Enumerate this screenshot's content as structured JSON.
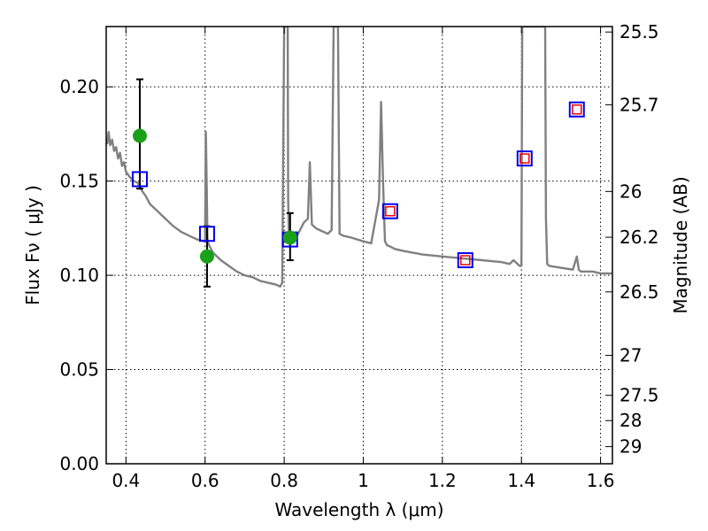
{
  "chart_data": {
    "type": "line",
    "xlabel": "Wavelength  λ (μm)",
    "ylabel": "Flux  Fν  ( μJy )",
    "y2label": "Magnitude (AB)",
    "xlim": [
      0.35,
      1.63
    ],
    "ylim": [
      0.0,
      0.232
    ],
    "grid": true,
    "x_ticks": [
      0.4,
      0.6,
      0.8,
      1.0,
      1.2,
      1.4,
      1.6
    ],
    "x_tick_labels": [
      "0.4",
      "0.6",
      "0.8",
      "1",
      "1.2",
      "1.4",
      "1.6"
    ],
    "y_ticks": [
      0.0,
      0.05,
      0.1,
      0.15,
      0.2
    ],
    "y_tick_labels": [
      "0.00",
      "0.05",
      "0.10",
      "0.15",
      "0.20"
    ],
    "y2_ticks": [
      {
        "label": "25.5",
        "flux": 0.2291
      },
      {
        "label": "25.7",
        "flux": 0.1905
      },
      {
        "label": "26",
        "flux": 0.1445
      },
      {
        "label": "26.2",
        "flux": 0.1202
      },
      {
        "label": "26.5",
        "flux": 0.0912
      },
      {
        "label": "27",
        "flux": 0.0575
      },
      {
        "label": "27.5",
        "flux": 0.0363
      },
      {
        "label": "28",
        "flux": 0.0229
      },
      {
        "label": "29",
        "flux": 0.0091
      }
    ],
    "colors": {
      "sed": "#808080",
      "observed": "#1aa11a",
      "model_box": "#0000ee",
      "predicted_box": "#ee0000",
      "errorbar": "#000000",
      "grid": "#000000"
    },
    "series": [
      {
        "kind": "sed_line",
        "x": [
          0.35,
          0.353,
          0.356,
          0.36,
          0.365,
          0.37,
          0.375,
          0.38,
          0.385,
          0.39,
          0.395,
          0.4,
          0.41,
          0.42,
          0.43,
          0.44,
          0.45,
          0.46,
          0.48,
          0.5,
          0.52,
          0.54,
          0.56,
          0.58,
          0.6,
          0.602,
          0.604,
          0.606,
          0.608,
          0.61,
          0.62,
          0.64,
          0.66,
          0.68,
          0.7,
          0.72,
          0.74,
          0.76,
          0.78,
          0.79,
          0.795,
          0.8,
          0.803,
          0.805,
          0.806,
          0.807,
          0.808,
          0.809,
          0.81,
          0.812,
          0.815,
          0.82,
          0.83,
          0.84,
          0.85,
          0.86,
          0.865,
          0.87,
          0.875,
          0.88,
          0.89,
          0.9,
          0.91,
          0.92,
          0.925,
          0.93,
          0.932,
          0.934,
          0.936,
          0.94,
          0.95,
          0.97,
          1.0,
          1.02,
          1.04,
          1.045,
          1.05,
          1.055,
          1.06,
          1.07,
          1.08,
          1.1,
          1.15,
          1.2,
          1.25,
          1.3,
          1.35,
          1.37,
          1.38,
          1.39,
          1.395,
          1.4,
          1.402,
          1.404,
          1.406,
          1.408,
          1.41,
          1.43,
          1.45,
          1.455,
          1.458,
          1.46,
          1.462,
          1.465,
          1.47,
          1.5,
          1.53,
          1.54,
          1.545,
          1.55,
          1.56,
          1.58,
          1.6,
          1.63
        ],
        "y": [
          0.172,
          0.17,
          0.176,
          0.169,
          0.172,
          0.166,
          0.168,
          0.162,
          0.165,
          0.158,
          0.16,
          0.155,
          0.152,
          0.15,
          0.149,
          0.145,
          0.142,
          0.138,
          0.134,
          0.13,
          0.126,
          0.123,
          0.121,
          0.119,
          0.118,
          0.176,
          0.15,
          0.12,
          0.117,
          0.116,
          0.112,
          0.108,
          0.105,
          0.102,
          0.1,
          0.099,
          0.097,
          0.096,
          0.095,
          0.094,
          0.096,
          0.232,
          0.232,
          0.232,
          0.232,
          0.232,
          0.232,
          0.232,
          0.14,
          0.12,
          0.118,
          0.117,
          0.12,
          0.124,
          0.128,
          0.13,
          0.16,
          0.127,
          0.126,
          0.125,
          0.124,
          0.123,
          0.122,
          0.124,
          0.232,
          0.232,
          0.232,
          0.232,
          0.232,
          0.122,
          0.121,
          0.12,
          0.118,
          0.117,
          0.14,
          0.192,
          0.15,
          0.118,
          0.116,
          0.115,
          0.114,
          0.113,
          0.111,
          0.11,
          0.109,
          0.108,
          0.107,
          0.106,
          0.108,
          0.106,
          0.105,
          0.105,
          0.232,
          0.232,
          0.232,
          0.232,
          0.232,
          0.232,
          0.232,
          0.232,
          0.232,
          0.232,
          0.13,
          0.106,
          0.105,
          0.104,
          0.103,
          0.11,
          0.103,
          0.102,
          0.102,
          0.102,
          0.101,
          0.101
        ]
      },
      {
        "kind": "observed",
        "x": [
          0.435,
          0.605,
          0.815
        ],
        "y": [
          0.174,
          0.11,
          0.12
        ],
        "yerr_low": [
          0.146,
          0.094,
          0.108
        ],
        "yerr_high": [
          0.204,
          0.126,
          0.133
        ]
      },
      {
        "kind": "model_box",
        "x": [
          0.435,
          0.605,
          0.815,
          1.068,
          1.258,
          1.408,
          1.54
        ],
        "y": [
          0.151,
          0.122,
          0.119,
          0.134,
          0.108,
          0.162,
          0.188
        ]
      },
      {
        "kind": "predicted_box",
        "x": [
          1.068,
          1.258,
          1.408,
          1.54
        ],
        "y": [
          0.134,
          0.108,
          0.162,
          0.188
        ]
      }
    ]
  }
}
